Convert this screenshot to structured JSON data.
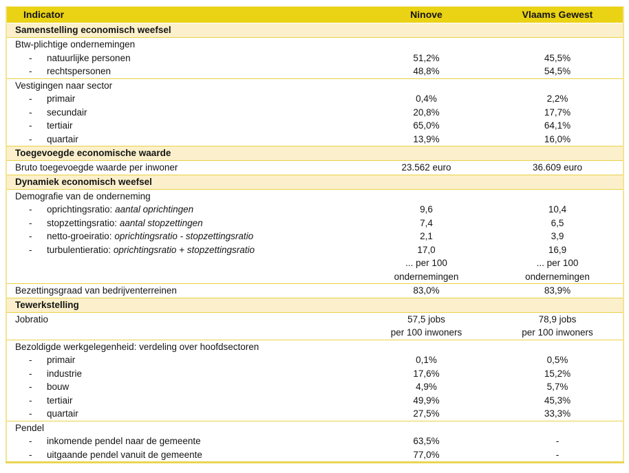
{
  "colors": {
    "header_bg": "#ead214",
    "section_bg": "#fbf0cb",
    "rule_gold": "#e9d145",
    "frame": "#f3e494",
    "frame_bottom": "#ebd553",
    "text": "#141414"
  },
  "table": {
    "columns": [
      "Indicator",
      "Ninove",
      "Vlaams Gewest"
    ],
    "rows": [
      {
        "type": "section",
        "sep": "white",
        "label": "Samenstelling economisch weefsel"
      },
      {
        "type": "group",
        "sep": "gold",
        "label": "Btw-plichtige ondernemingen"
      },
      {
        "type": "sub",
        "label": "natuurlijke personen",
        "ninove": "51,2%",
        "vlaams": "45,5%"
      },
      {
        "type": "sub",
        "label": "rechtspersonen",
        "ninove": "48,8%",
        "vlaams": "54,5%"
      },
      {
        "type": "group",
        "sep": "gold",
        "label": "Vestigingen naar sector"
      },
      {
        "type": "sub",
        "label": "primair",
        "ninove": "0,4%",
        "vlaams": "2,2%"
      },
      {
        "type": "sub",
        "label": "secundair",
        "ninove": "20,8%",
        "vlaams": "17,7%"
      },
      {
        "type": "sub",
        "label": "tertiair",
        "ninove": "65,0%",
        "vlaams": "64,1%"
      },
      {
        "type": "sub",
        "label": "quartair",
        "ninove": "13,9%",
        "vlaams": "16,0%"
      },
      {
        "type": "section",
        "sep": "gold",
        "label": "Toegevoegde economische waarde"
      },
      {
        "type": "row",
        "sep": "gold",
        "label": "Bruto toegevoegde waarde per inwoner",
        "ninove": "23.562 euro",
        "vlaams": "36.609 euro"
      },
      {
        "type": "section",
        "sep": "gold",
        "label": "Dynamiek economisch weefsel"
      },
      {
        "type": "group",
        "sep": "gold",
        "label": "Demografie van de onderneming"
      },
      {
        "type": "sub",
        "label": "oprichtingsratio: ",
        "italic": "aantal oprichtingen",
        "ninove": "9,6",
        "vlaams": "10,4"
      },
      {
        "type": "sub",
        "label": "stopzettingsratio: ",
        "italic": "aantal stopzettingen",
        "ninove": "7,4",
        "vlaams": "6,5"
      },
      {
        "type": "sub",
        "label": "netto-groeiratio: ",
        "italic": "oprichtingsratio - stopzettingsratio",
        "ninove": "2,1",
        "vlaams": "3,9"
      },
      {
        "type": "sub",
        "label": "turbulentieratio: ",
        "italic": "oprichtingsratio + stopzettingsratio",
        "ninove": "17,0",
        "vlaams": "16,9"
      },
      {
        "type": "note",
        "ninove": "... per 100\nondernemingen",
        "vlaams": "... per 100\nondernemingen"
      },
      {
        "type": "row",
        "sep": "gold",
        "label": "Bezettingsgraad van bedrijventerreinen",
        "ninove": "83,0%",
        "vlaams": "83,9%"
      },
      {
        "type": "section",
        "sep": "gold",
        "label": "Tewerkstelling"
      },
      {
        "type": "row",
        "sep": "gold",
        "label": "Jobratio",
        "ninove": "57,5 jobs\nper 100 inwoners",
        "vlaams": "78,9 jobs\nper 100 inwoners"
      },
      {
        "type": "group",
        "sep": "gold",
        "label": "Bezoldigde werkgelegenheid: verdeling over hoofdsectoren"
      },
      {
        "type": "sub",
        "label": "primair",
        "ninove": "0,1%",
        "vlaams": "0,5%"
      },
      {
        "type": "sub",
        "label": "industrie",
        "ninove": "17,6%",
        "vlaams": "15,2%"
      },
      {
        "type": "sub",
        "label": "bouw",
        "ninove": "4,9%",
        "vlaams": "5,7%"
      },
      {
        "type": "sub",
        "label": "tertiair",
        "ninove": "49,9%",
        "vlaams": "45,3%"
      },
      {
        "type": "sub",
        "label": "quartair",
        "ninove": "27,5%",
        "vlaams": "33,3%"
      },
      {
        "type": "group",
        "sep": "gold",
        "label": "Pendel"
      },
      {
        "type": "sub",
        "label": "inkomende pendel naar de gemeente",
        "ninove": "63,5%",
        "vlaams": "-"
      },
      {
        "type": "sub",
        "label": "uitgaande pendel vanuit de gemeente",
        "ninove": "77,0%",
        "vlaams": "-"
      }
    ]
  }
}
